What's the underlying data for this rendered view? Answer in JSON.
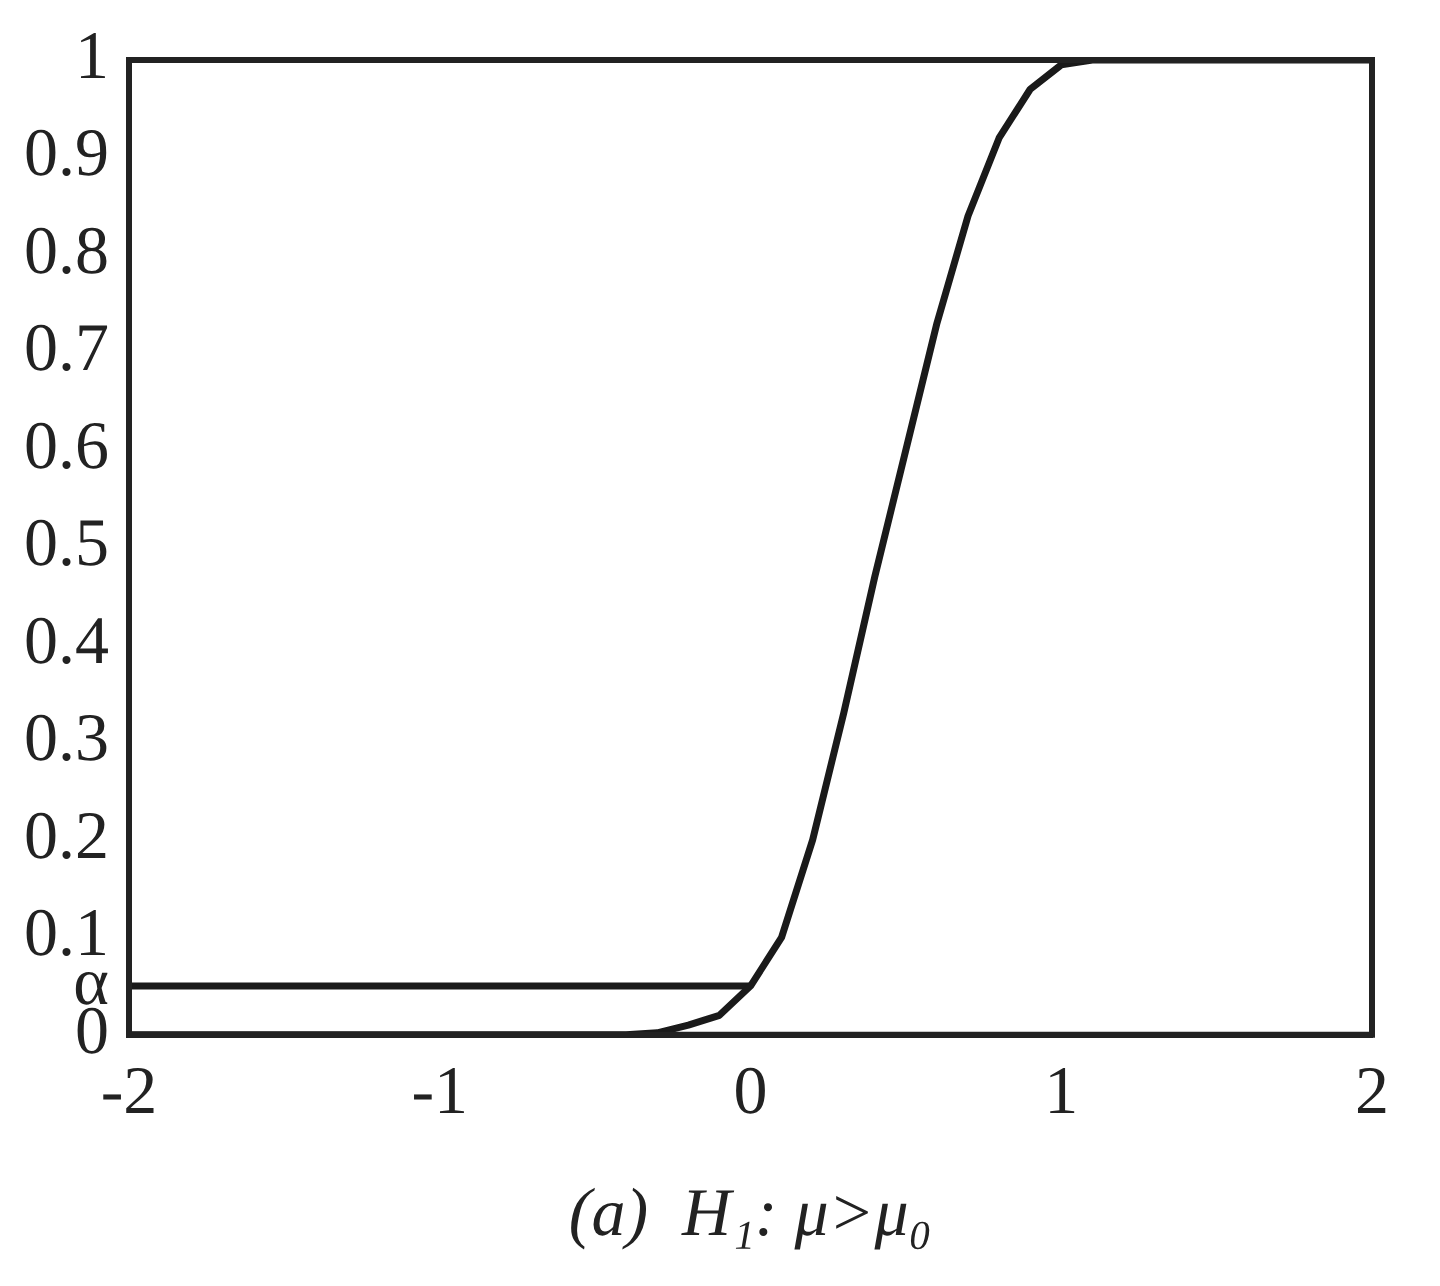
{
  "chart_data": {
    "type": "line",
    "xlabel": "(a)  H₁: μ>μ₀",
    "xlim": [
      -2,
      2
    ],
    "xticks": [
      -2,
      -1,
      0,
      1,
      2
    ],
    "ylim": [
      0,
      1
    ],
    "yticks": [
      0,
      {
        "value": 0.05,
        "label": "α"
      },
      0.1,
      0.2,
      0.3,
      0.4,
      0.5,
      0.6,
      0.7,
      0.8,
      0.9,
      1
    ],
    "grid": false,
    "legend": false,
    "marker": "none",
    "line_style": "solid",
    "series": [
      {
        "color": "#1a1a1a",
        "x": [
          -2,
          -1,
          -0.4,
          -0.3,
          -0.2,
          -0.1,
          0,
          0.1,
          0.2,
          0.3,
          0.4,
          0.5,
          0.6,
          0.7,
          0.8,
          0.9,
          1,
          1.1,
          2
        ],
        "values": [
          0,
          0,
          0,
          0.002,
          0.01,
          0.02,
          0.05,
          0.1,
          0.2,
          0.33,
          0.47,
          0.6,
          0.73,
          0.84,
          0.92,
          0.97,
          0.995,
          1,
          1
        ]
      },
      {
        "color": "#1a1a1a",
        "x": [
          -2,
          0
        ],
        "values": [
          0.05,
          0.05
        ]
      }
    ]
  }
}
